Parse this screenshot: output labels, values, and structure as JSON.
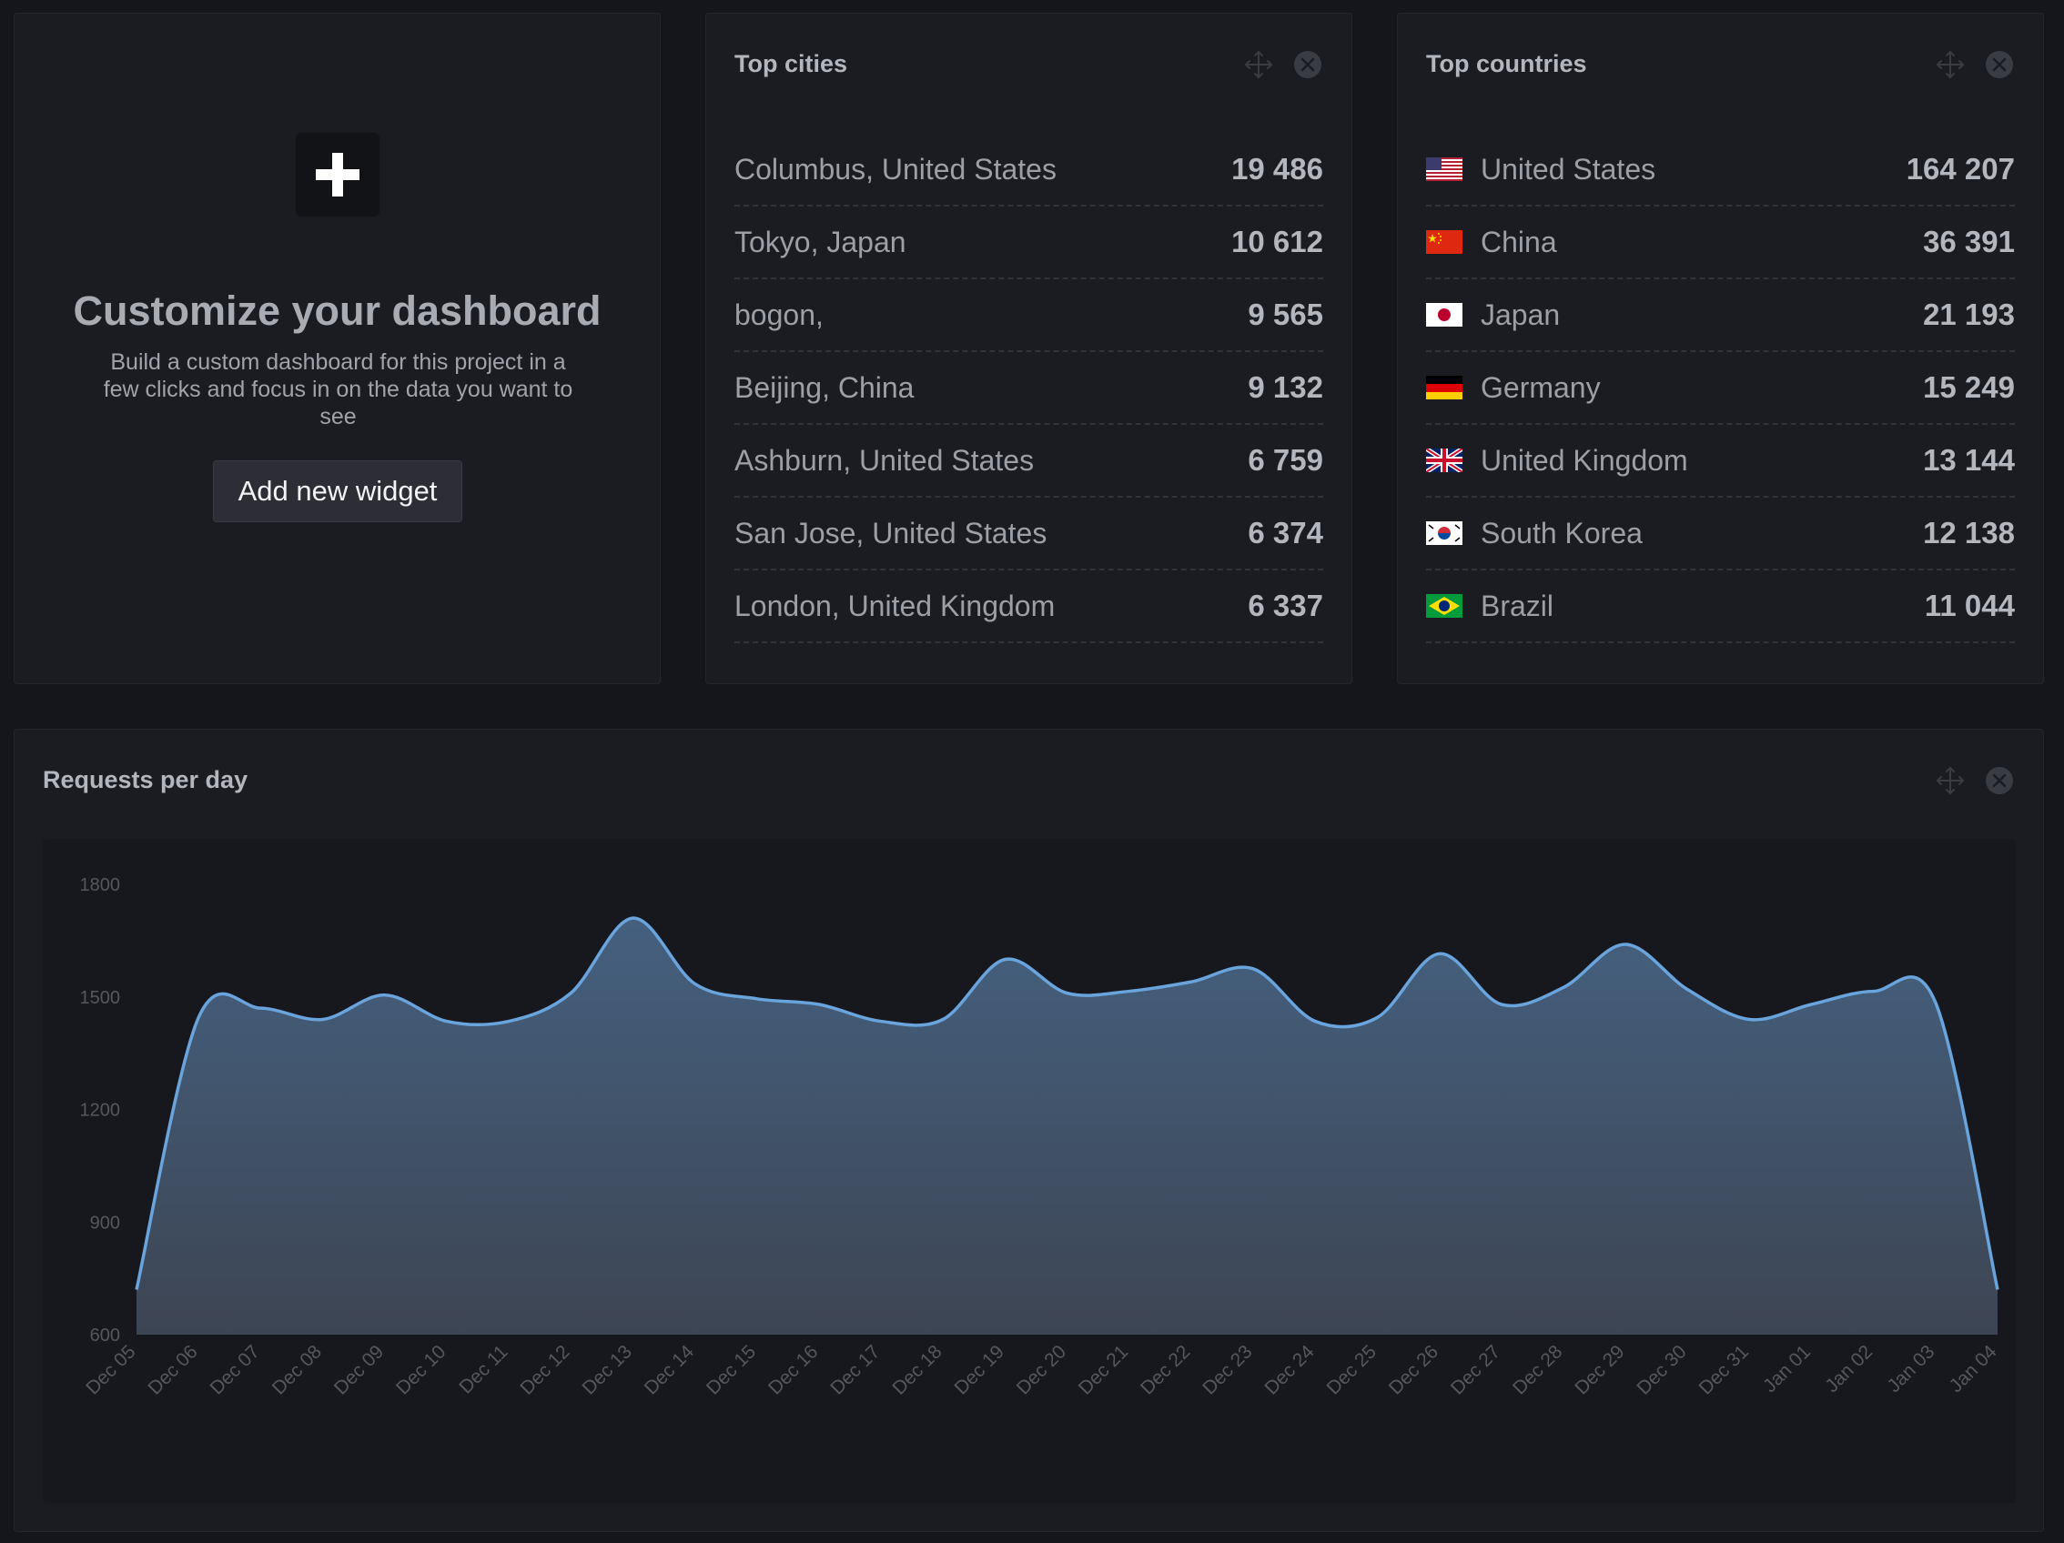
{
  "customize": {
    "title": "Customize your dashboard",
    "description": "Build a custom dashboard for this project in a few clicks and focus in on the data you want to see",
    "button_label": "Add new widget",
    "icon": "plus-icon"
  },
  "cities": {
    "title": "Top cities",
    "rows": [
      {
        "label": "Columbus, United States",
        "value": "19 486"
      },
      {
        "label": "Tokyo, Japan",
        "value": "10 612"
      },
      {
        "label": "bogon,",
        "value": "9 565"
      },
      {
        "label": "Beijing, China",
        "value": "9 132"
      },
      {
        "label": "Ashburn, United States",
        "value": "6 759"
      },
      {
        "label": "San Jose, United States",
        "value": "6 374"
      },
      {
        "label": "London, United Kingdom",
        "value": "6 337"
      }
    ]
  },
  "countries": {
    "title": "Top countries",
    "rows": [
      {
        "label": "United States",
        "value": "164 207",
        "flag": "us"
      },
      {
        "label": "China",
        "value": "36 391",
        "flag": "cn"
      },
      {
        "label": "Japan",
        "value": "21 193",
        "flag": "jp"
      },
      {
        "label": "Germany",
        "value": "15 249",
        "flag": "de"
      },
      {
        "label": "United Kingdom",
        "value": "13 144",
        "flag": "gb"
      },
      {
        "label": "South Korea",
        "value": "12 138",
        "flag": "kr"
      },
      {
        "label": "Brazil",
        "value": "11 044",
        "flag": "br"
      }
    ]
  },
  "chart": {
    "title": "Requests per day"
  },
  "colors": {
    "background": "#15161b",
    "card": "#1b1c22",
    "line": "#6aa4dd",
    "area_top": "#44607f",
    "area_bottom": "#3d4553"
  },
  "chart_data": {
    "type": "area",
    "title": "Requests per day",
    "xlabel": "",
    "ylabel": "",
    "x": [
      "Dec 05",
      "Dec 06",
      "Dec 07",
      "Dec 08",
      "Dec 09",
      "Dec 10",
      "Dec 11",
      "Dec 12",
      "Dec 13",
      "Dec 14",
      "Dec 15",
      "Dec 16",
      "Dec 17",
      "Dec 18",
      "Dec 19",
      "Dec 20",
      "Dec 21",
      "Dec 22",
      "Dec 23",
      "Dec 24",
      "Dec 25",
      "Dec 26",
      "Dec 27",
      "Dec 28",
      "Dec 29",
      "Dec 30",
      "Dec 31",
      "Jan 01",
      "Jan 02",
      "Jan 03",
      "Jan 04"
    ],
    "values": [
      720,
      1445,
      1470,
      1440,
      1505,
      1435,
      1435,
      1510,
      1710,
      1535,
      1495,
      1480,
      1435,
      1440,
      1600,
      1510,
      1515,
      1540,
      1575,
      1435,
      1445,
      1615,
      1480,
      1525,
      1640,
      1520,
      1440,
      1480,
      1515,
      1485,
      720
    ],
    "ylim": [
      600,
      1800
    ],
    "yticks": [
      600,
      900,
      1200,
      1500,
      1800
    ],
    "grid": false,
    "legend": "none"
  }
}
